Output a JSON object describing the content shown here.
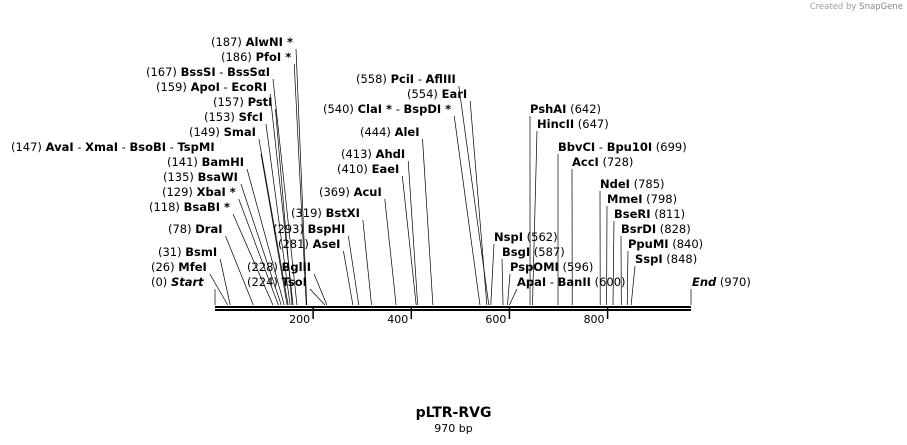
{
  "credit": {
    "prefix": "Created by",
    "brand": "SnapGene"
  },
  "map": {
    "name": "pLTR-RVG",
    "length_label": "970 bp",
    "length_bp": 970,
    "ticks": [
      "200",
      "400",
      "600",
      "800"
    ],
    "tick_values": [
      200,
      400,
      600,
      800
    ],
    "start": {
      "pos": "(0)",
      "label": "Start"
    },
    "end": {
      "pos": "(970)",
      "label": "End"
    },
    "sites": [
      {
        "pos": "(26)",
        "names": [
          "MfeI"
        ],
        "bp": 26
      },
      {
        "pos": "(31)",
        "names": [
          "BsmI"
        ],
        "bp": 31
      },
      {
        "pos": "(78)",
        "names": [
          "DraI"
        ],
        "bp": 78
      },
      {
        "pos": "(118)",
        "names": [
          "BsaBI *"
        ],
        "bp": 118
      },
      {
        "pos": "(129)",
        "names": [
          "XbaI *"
        ],
        "bp": 129
      },
      {
        "pos": "(135)",
        "names": [
          "BsaWI"
        ],
        "bp": 135
      },
      {
        "pos": "(141)",
        "names": [
          "BamHI"
        ],
        "bp": 141
      },
      {
        "pos": "(147)",
        "names": [
          "AvaI",
          "XmaI",
          "BsoBI",
          "TspMI"
        ],
        "bp": 147
      },
      {
        "pos": "(149)",
        "names": [
          "SmaI"
        ],
        "bp": 149
      },
      {
        "pos": "(153)",
        "names": [
          "SfcI"
        ],
        "bp": 153
      },
      {
        "pos": "(157)",
        "names": [
          "PstI"
        ],
        "bp": 157
      },
      {
        "pos": "(159)",
        "names": [
          "ApoI",
          "EcoRI"
        ],
        "bp": 159
      },
      {
        "pos": "(167)",
        "names": [
          "BssSI",
          "BssSαI"
        ],
        "bp": 167
      },
      {
        "pos": "(186)",
        "names": [
          "PfoI *"
        ],
        "bp": 186
      },
      {
        "pos": "(187)",
        "names": [
          "AlwNI *"
        ],
        "bp": 187
      },
      {
        "pos": "(224)",
        "names": [
          "TsoI"
        ],
        "bp": 224
      },
      {
        "pos": "(228)",
        "names": [
          "BglII"
        ],
        "bp": 228
      },
      {
        "pos": "(281)",
        "names": [
          "AseI"
        ],
        "bp": 281
      },
      {
        "pos": "(293)",
        "names": [
          "BspHI"
        ],
        "bp": 293
      },
      {
        "pos": "(319)",
        "names": [
          "BstXI"
        ],
        "bp": 319
      },
      {
        "pos": "(369)",
        "names": [
          "AcuI"
        ],
        "bp": 369
      },
      {
        "pos": "(410)",
        "names": [
          "EaeI"
        ],
        "bp": 410
      },
      {
        "pos": "(413)",
        "names": [
          "AhdI"
        ],
        "bp": 413
      },
      {
        "pos": "(444)",
        "names": [
          "AleI"
        ],
        "bp": 444
      },
      {
        "pos": "(540)",
        "names": [
          "ClaI *",
          "BspDI *"
        ],
        "bp": 540
      },
      {
        "pos": "(554)",
        "names": [
          "EarI"
        ],
        "bp": 554
      },
      {
        "pos": "(558)",
        "names": [
          "PciI",
          "AflIII"
        ],
        "bp": 558
      },
      {
        "pos": "(562)",
        "names": [
          "NspI"
        ],
        "bp": 562
      },
      {
        "pos": "(587)",
        "names": [
          "BsgI"
        ],
        "bp": 587
      },
      {
        "pos": "(596)",
        "names": [
          "PspOMI"
        ],
        "bp": 596
      },
      {
        "pos": "(600)",
        "names": [
          "ApaI",
          "BanII"
        ],
        "bp": 600
      },
      {
        "pos": "(642)",
        "names": [
          "PshAI"
        ],
        "bp": 642
      },
      {
        "pos": "(647)",
        "names": [
          "HincII"
        ],
        "bp": 647
      },
      {
        "pos": "(699)",
        "names": [
          "BbvCI",
          "Bpu10I"
        ],
        "bp": 699
      },
      {
        "pos": "(728)",
        "names": [
          "AccI"
        ],
        "bp": 728
      },
      {
        "pos": "(785)",
        "names": [
          "NdeI"
        ],
        "bp": 785
      },
      {
        "pos": "(798)",
        "names": [
          "MmeI"
        ],
        "bp": 798
      },
      {
        "pos": "(811)",
        "names": [
          "BseRI"
        ],
        "bp": 811
      },
      {
        "pos": "(828)",
        "names": [
          "BsrDI"
        ],
        "bp": 828
      },
      {
        "pos": "(840)",
        "names": [
          "PpuMI"
        ],
        "bp": 840
      },
      {
        "pos": "(848)",
        "names": [
          "SspI"
        ],
        "bp": 848
      }
    ]
  }
}
